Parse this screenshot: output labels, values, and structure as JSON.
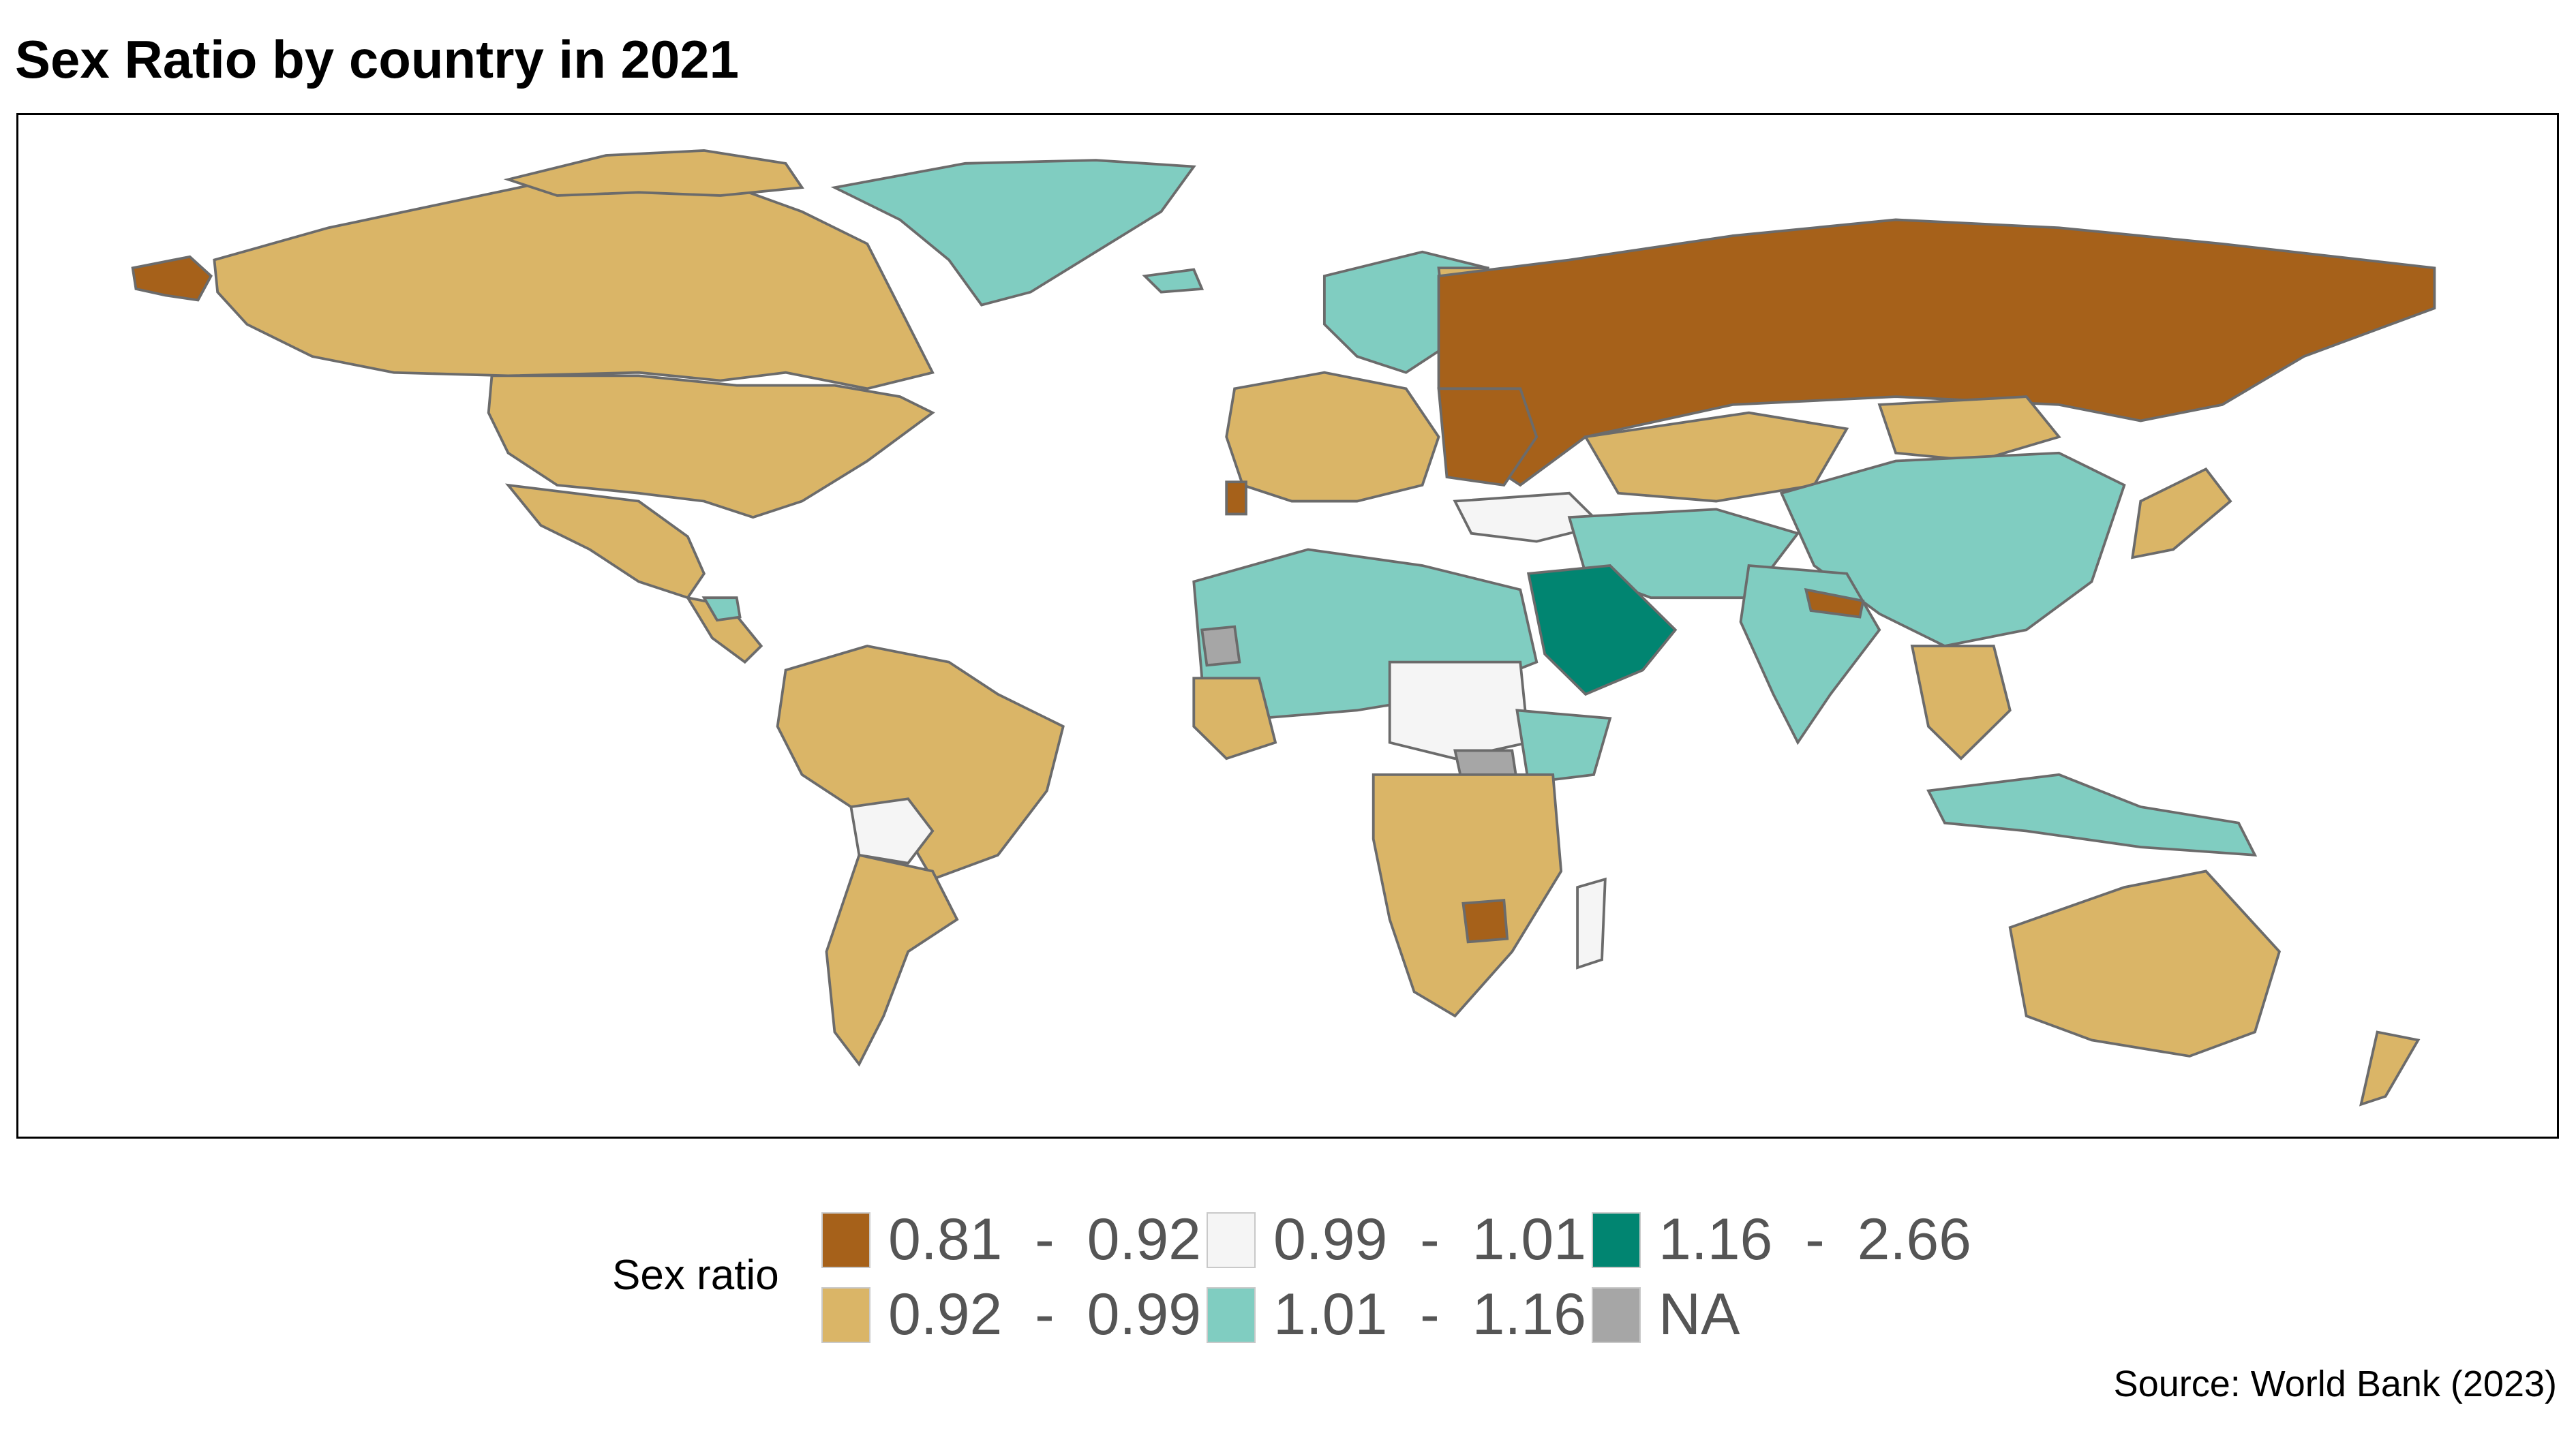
{
  "title": "Sex Ratio by country in 2021",
  "source": "Source: World Bank (2023)",
  "legend": {
    "title": "Sex ratio",
    "items": [
      {
        "label": "0.81  -  0.92",
        "color": "#A6611A"
      },
      {
        "label": "0.92  -  0.99",
        "color": "#DAB567"
      },
      {
        "label": "0.99  -  1.01",
        "color": "#F5F5F5"
      },
      {
        "label": "1.01  -  1.16",
        "color": "#80CDC1"
      },
      {
        "label": "1.16  -  2.66",
        "color": "#018571"
      },
      {
        "label": "NA",
        "color": "#A6A6A6"
      }
    ]
  },
  "map_data": {
    "type": "choropleth",
    "variable": "Sex ratio",
    "regions": [
      {
        "name": "Russia",
        "bin": "0.81 - 0.92"
      },
      {
        "name": "Ukraine",
        "bin": "0.81 - 0.92"
      },
      {
        "name": "Belarus",
        "bin": "0.81 - 0.92"
      },
      {
        "name": "Portugal",
        "bin": "0.81 - 0.92"
      },
      {
        "name": "Nepal",
        "bin": "0.81 - 0.92"
      },
      {
        "name": "Zimbabwe",
        "bin": "0.81 - 0.92"
      },
      {
        "name": "United States",
        "bin": "0.92 - 0.99"
      },
      {
        "name": "Canada",
        "bin": "0.92 - 0.99"
      },
      {
        "name": "Brazil",
        "bin": "0.92 - 0.99"
      },
      {
        "name": "Australia",
        "bin": "0.92 - 0.99"
      },
      {
        "name": "Kazakhstan",
        "bin": "0.92 - 0.99"
      },
      {
        "name": "Mongolia",
        "bin": "0.92 - 0.99"
      },
      {
        "name": "Japan",
        "bin": "0.92 - 0.99"
      },
      {
        "name": "Bolivia",
        "bin": "0.99 - 1.01"
      },
      {
        "name": "Sudan",
        "bin": "0.99 - 1.01"
      },
      {
        "name": "Madagascar",
        "bin": "0.99 - 1.01"
      },
      {
        "name": "Turkey",
        "bin": "0.99 - 1.01"
      },
      {
        "name": "Greenland",
        "bin": "1.01 - 1.16"
      },
      {
        "name": "China",
        "bin": "1.01 - 1.16"
      },
      {
        "name": "India",
        "bin": "1.01 - 1.16"
      },
      {
        "name": "Algeria",
        "bin": "1.01 - 1.16"
      },
      {
        "name": "Libya",
        "bin": "1.01 - 1.16"
      },
      {
        "name": "Egypt",
        "bin": "1.01 - 1.16"
      },
      {
        "name": "Indonesia",
        "bin": "1.01 - 1.16"
      },
      {
        "name": "Saudi Arabia",
        "bin": "1.16 - 2.66"
      },
      {
        "name": "Oman",
        "bin": "1.16 - 2.66"
      },
      {
        "name": "South Sudan",
        "bin": "NA"
      },
      {
        "name": "Western Sahara",
        "bin": "NA"
      }
    ]
  }
}
